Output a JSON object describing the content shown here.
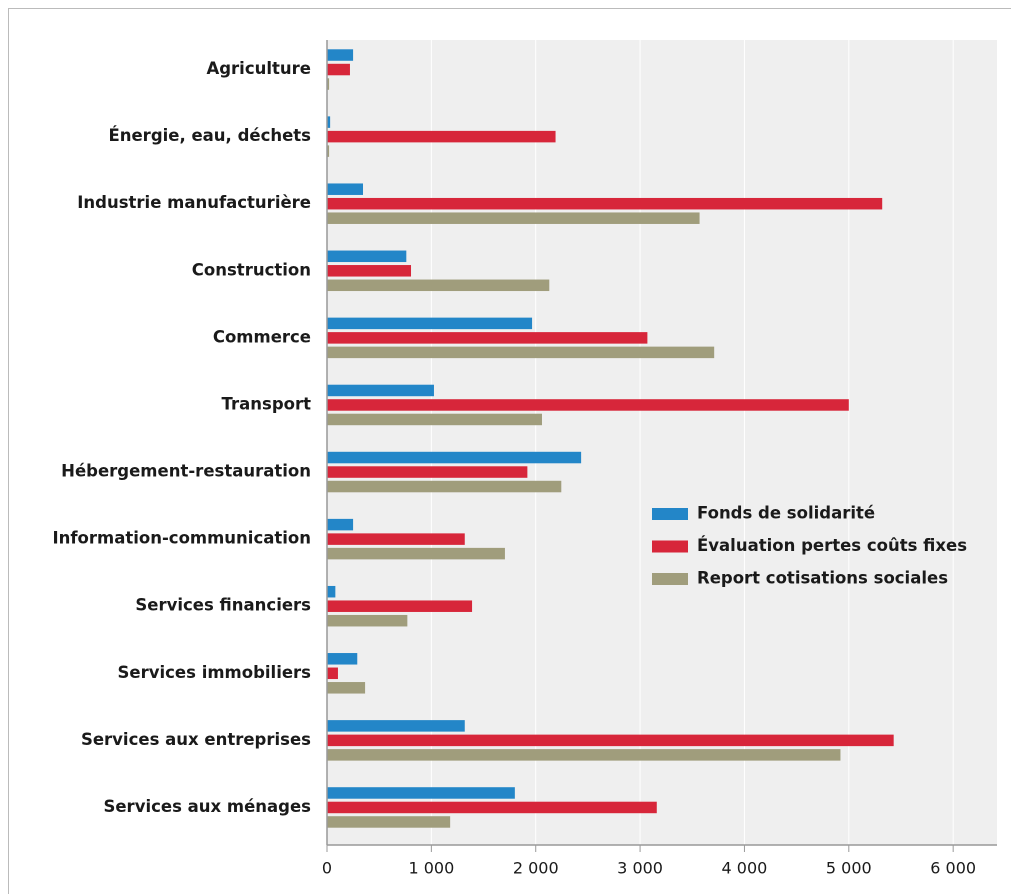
{
  "chart_data": {
    "type": "barh",
    "categories": [
      "Agriculture",
      "Énergie, eau, déchets",
      "Industrie manufacturière",
      "Construction",
      "Commerce",
      "Transport",
      "Hébergement-restauration",
      "Information-communication",
      "Services financiers",
      "Services immobiliers",
      "Services aux entreprises",
      "Services aux ménages"
    ],
    "series": [
      {
        "name": "Fonds de solidarité",
        "color": "#2386c8",
        "values": [
          250,
          30,
          345,
          760,
          1965,
          1025,
          2435,
          250,
          80,
          290,
          1320,
          1800
        ]
      },
      {
        "name": "Évaluation pertes coûts fixes",
        "color": "#d7263a",
        "values": [
          220,
          2190,
          5320,
          805,
          3070,
          5000,
          1920,
          1320,
          1390,
          105,
          5430,
          3160
        ]
      },
      {
        "name": "Report cotisations sociales",
        "color": "#a09d7c",
        "values": [
          20,
          20,
          3570,
          2130,
          3710,
          2060,
          2245,
          1705,
          770,
          365,
          4920,
          1180
        ]
      }
    ],
    "xlim": [
      0,
      6420
    ],
    "xticks": [
      0,
      {
        "value": 1000,
        "label": "1 000"
      },
      {
        "value": 2000,
        "label": "2 000"
      },
      {
        "value": 3000,
        "label": "3 000"
      },
      {
        "value": 4000,
        "label": "4 000"
      },
      {
        "value": 5000,
        "label": "5 000"
      },
      {
        "value": 6000,
        "label": "6 000"
      }
    ],
    "grid": true,
    "legend_position": "right"
  }
}
